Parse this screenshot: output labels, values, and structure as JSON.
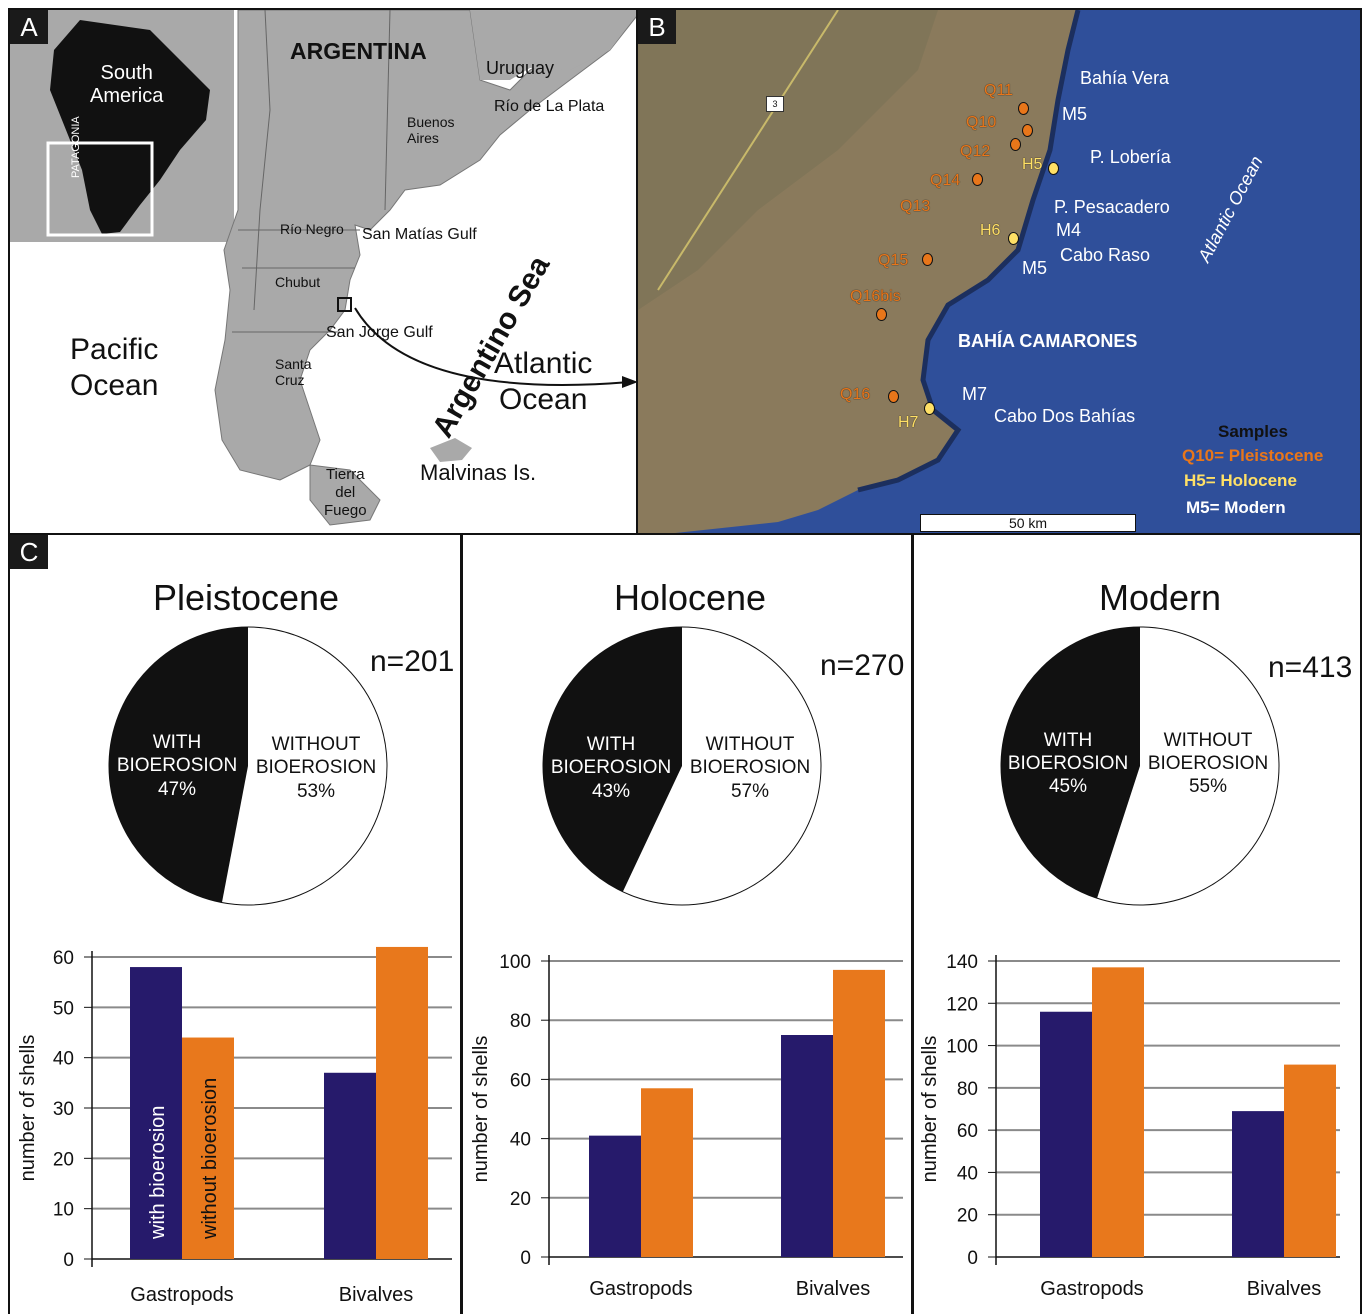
{
  "panels": {
    "a": "A",
    "b": "B",
    "c": "C"
  },
  "map_a": {
    "inset_continent": "South\nAmerica",
    "inset_region": "PATAGONIA",
    "country": "ARGENTINA",
    "uruguay": "Uruguay",
    "rio_plata": "Río de La Plata",
    "buenos_aires": "Buenos\nAires",
    "rio_negro": "Río Negro",
    "san_matias": "San Matías Gulf",
    "chubut": "Chubut",
    "san_jorge": "San Jorge Gulf",
    "santa_cruz": "Santa\nCruz",
    "tierra_fuego": "Tierra\ndel\nFuego",
    "pacific": "Pacific\nOcean",
    "atlantic": "Atlantic\nOcean",
    "argentino_sea": "Argentino Sea",
    "malvinas": "Malvinas Is.",
    "colors": {
      "land": "#a9a9a9",
      "inset_land": "#111111",
      "water": "#ffffff"
    }
  },
  "map_b": {
    "route": "3",
    "places": {
      "bahia_vera": "Bahía Vera",
      "p_loberia": "P. Lobería",
      "p_pesacadero": "P. Pesacadero",
      "cabo_raso": "Cabo Raso",
      "bahia_camarones": "BAHÍA CAMARONES",
      "cabo_dos_bahias": "Cabo Dos Bahías",
      "atlantic": "Atlantic Ocean"
    },
    "pleistocene_samples": [
      "Q11",
      "Q10",
      "Q12",
      "Q14",
      "Q13",
      "Q15",
      "Q16bis",
      "Q16"
    ],
    "holocene_samples": [
      "H5",
      "H6",
      "H7"
    ],
    "modern_samples": [
      "M5",
      "M4",
      "M5",
      "M7"
    ],
    "legend": {
      "title": "Samples",
      "pleistocene": "Q10= Pleistocene",
      "holocene": "H5= Holocene",
      "modern": "M5= Modern"
    },
    "scale": "50 km",
    "colors": {
      "sea": "#2f4f9a",
      "land": "#8a7a5c",
      "pleistocene": "#e8761a",
      "holocene": "#ffe066",
      "modern": "#ffffff"
    }
  },
  "chart_data": [
    {
      "type": "pie",
      "title": "Pleistocene",
      "n_label": "n=201",
      "slices": [
        {
          "label": "WITH\nBIOEROSION",
          "value": 47,
          "pct": "47%",
          "color": "#111111"
        },
        {
          "label": "WITHOUT\nBIOEROSION",
          "value": 53,
          "pct": "53%",
          "color": "#ffffff"
        }
      ]
    },
    {
      "type": "pie",
      "title": "Holocene",
      "n_label": "n=270",
      "slices": [
        {
          "label": "WITH\nBIOEROSION",
          "value": 43,
          "pct": "43%",
          "color": "#111111"
        },
        {
          "label": "WITHOUT\nBIOEROSION",
          "value": 57,
          "pct": "57%",
          "color": "#ffffff"
        }
      ]
    },
    {
      "type": "pie",
      "title": "Modern",
      "n_label": "n=413",
      "slices": [
        {
          "label": "WITH\nBIOEROSION",
          "value": 45,
          "pct": "45%",
          "color": "#111111"
        },
        {
          "label": "WITHOUT\nBIOEROSION",
          "value": 55,
          "pct": "55%",
          "color": "#ffffff"
        }
      ]
    },
    {
      "type": "bar",
      "ylabel": "number of shells",
      "categories": [
        "Gastropods",
        "Bivalves"
      ],
      "ylim": [
        0,
        60
      ],
      "yticks": [
        0,
        10,
        20,
        30,
        40,
        50,
        60
      ],
      "grid": true,
      "series": [
        {
          "name": "with bioerosion",
          "values": [
            58,
            37
          ],
          "color": "#261a6b"
        },
        {
          "name": "without bioerosion",
          "values": [
            44,
            62
          ],
          "color": "#e8781c"
        }
      ],
      "series_labels_inside": true
    },
    {
      "type": "bar",
      "ylabel": "number of shells",
      "categories": [
        "Gastropods",
        "Bivalves"
      ],
      "ylim": [
        0,
        100
      ],
      "yticks": [
        0,
        20,
        40,
        60,
        80,
        100
      ],
      "grid": true,
      "series": [
        {
          "values": [
            41,
            75
          ],
          "color": "#261a6b"
        },
        {
          "values": [
            57,
            97
          ],
          "color": "#e8781c"
        }
      ]
    },
    {
      "type": "bar",
      "ylabel": "number of shells",
      "categories": [
        "Gastropods",
        "Bivalves"
      ],
      "ylim": [
        0,
        140
      ],
      "yticks": [
        0,
        20,
        40,
        60,
        80,
        100,
        120,
        140
      ],
      "grid": true,
      "series": [
        {
          "values": [
            116,
            69
          ],
          "color": "#261a6b"
        },
        {
          "values": [
            137,
            91
          ],
          "color": "#e8781c"
        }
      ]
    }
  ]
}
